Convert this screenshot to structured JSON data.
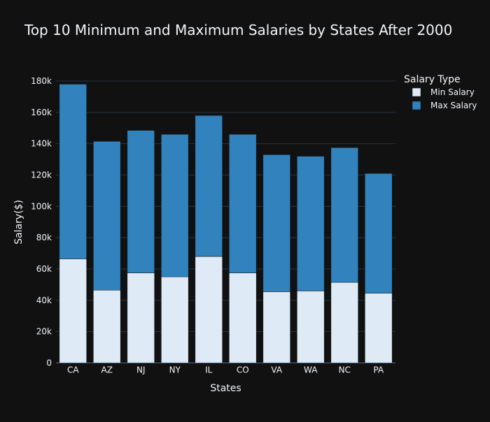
{
  "chart_data": {
    "type": "bar",
    "barmode": "stack",
    "title": "Top 10 Minimum and Maximum Salaries by States After 2000",
    "xlabel": "States",
    "ylabel": "Salary($)",
    "categories": [
      "CA",
      "AZ",
      "NJ",
      "NY",
      "IL",
      "CO",
      "VA",
      "WA",
      "NC",
      "PA"
    ],
    "series": [
      {
        "name": "Min Salary",
        "color": "#deebf7",
        "values": [
          66500,
          46500,
          57500,
          55000,
          68000,
          57500,
          45500,
          46000,
          51500,
          44500
        ]
      },
      {
        "name": "Max Salary",
        "color": "#3182bd",
        "values": [
          111500,
          95000,
          91000,
          91000,
          90000,
          88500,
          87500,
          86000,
          86000,
          76500
        ]
      }
    ],
    "ylim": [
      0,
      180000
    ],
    "yticks": [
      0,
      20000,
      40000,
      60000,
      80000,
      100000,
      120000,
      140000,
      160000,
      180000
    ],
    "ytick_labels": [
      "0",
      "20k",
      "40k",
      "60k",
      "80k",
      "100k",
      "120k",
      "140k",
      "160k",
      "180k"
    ],
    "grid": true,
    "legend": {
      "title": "Salary Type",
      "position": "top-right"
    },
    "theme": {
      "background": "#111111",
      "grid_color": "#283442",
      "text_color": "#f2f5fa",
      "axis_line_color": "#506784"
    }
  }
}
